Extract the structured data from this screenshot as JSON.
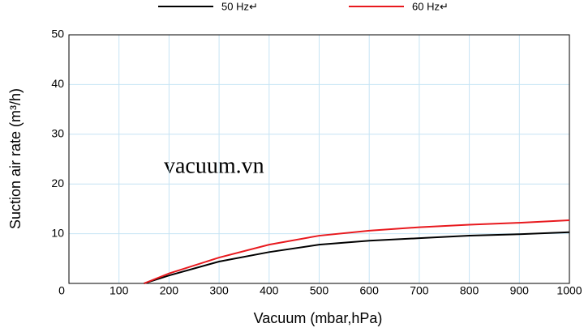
{
  "chart_data": {
    "type": "line",
    "xlabel": "Vacuum (mbar,hPa)",
    "ylabel": "Suction air rate (m³/h)",
    "annotation": "vacuum.vn",
    "x": [
      150,
      200,
      300,
      400,
      500,
      600,
      700,
      800,
      900,
      1000
    ],
    "series": [
      {
        "name": "50 Hz↵",
        "color": "#000000",
        "values": [
          0,
          1.6,
          4.4,
          6.3,
          7.8,
          8.6,
          9.1,
          9.6,
          9.9,
          10.3
        ]
      },
      {
        "name": "60 Hz↵",
        "color": "#e8191e",
        "values": [
          0,
          2.0,
          5.2,
          7.8,
          9.6,
          10.6,
          11.3,
          11.8,
          12.2,
          12.7
        ]
      }
    ],
    "xlim": [
      0,
      1000
    ],
    "xticks": [
      0,
      100,
      200,
      300,
      400,
      500,
      600,
      700,
      800,
      900,
      1000
    ],
    "ylim": [
      0,
      50
    ],
    "yticks": [
      10,
      20,
      30,
      40,
      50
    ],
    "grid": true,
    "grid_color": "#c6e4f4",
    "legend": "top"
  }
}
